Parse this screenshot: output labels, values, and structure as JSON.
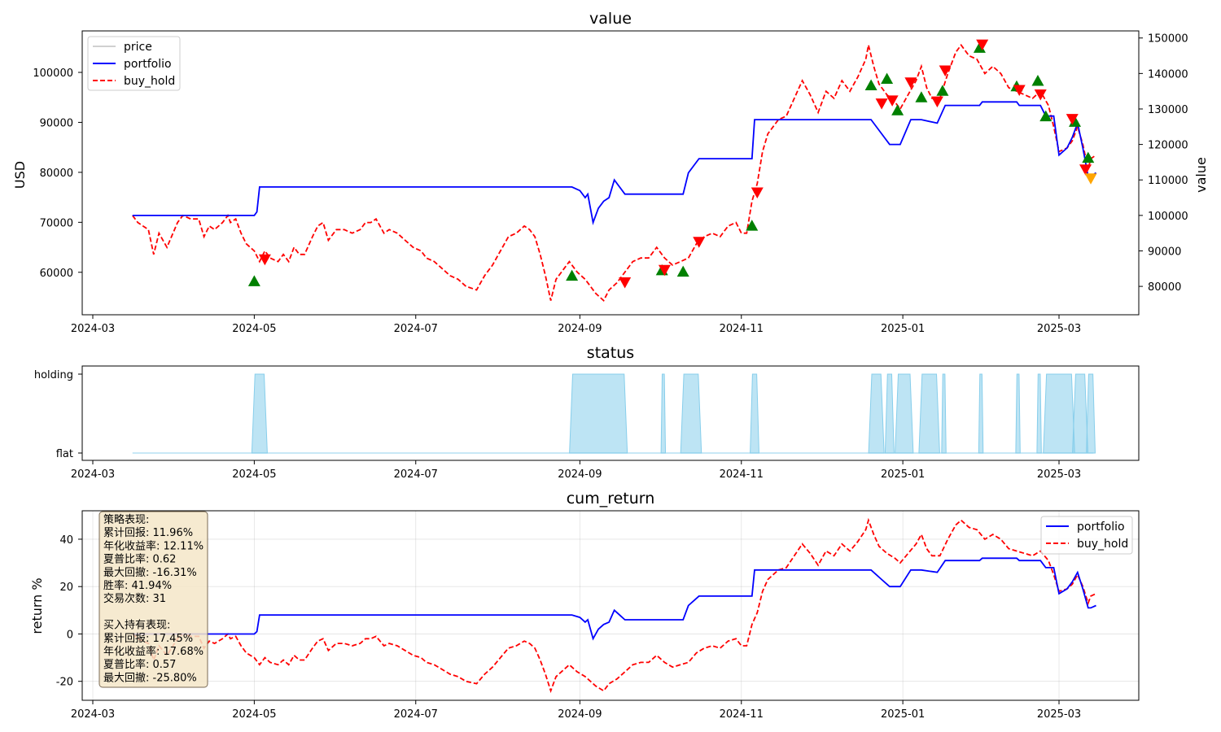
{
  "chart_data": [
    {
      "type": "line",
      "title": "value",
      "ylabel": "USD",
      "ylabel_right": "value",
      "x_ticks": [
        "2024-03",
        "2024-05",
        "2024-07",
        "2024-09",
        "2024-11",
        "2025-01",
        "2025-03"
      ],
      "y_ticks_left": [
        "60000",
        "70000",
        "80000",
        "90000",
        "100000"
      ],
      "y_ticks_right": [
        "80000",
        "90000",
        "100000",
        "110000",
        "120000",
        "130000",
        "140000",
        "150000"
      ],
      "ylim_left": [
        51500,
        108300
      ],
      "ylim_right": [
        72000,
        152000
      ],
      "legend": [
        {
          "name": "price",
          "color": "#c0c0c0",
          "style": "solid"
        },
        {
          "name": "portfolio",
          "color": "#0000ff",
          "style": "solid"
        },
        {
          "name": "buy_hold",
          "color": "#ff0000",
          "style": "dashed"
        }
      ],
      "legend_position": "top-left",
      "grid": false
    },
    {
      "type": "area",
      "title": "status",
      "y_ticks": [
        "holding",
        "flat"
      ],
      "x_ticks": [
        "2024-03",
        "2024-05",
        "2024-07",
        "2024-09",
        "2024-11",
        "2025-01",
        "2025-03"
      ],
      "color": "#87ceeb",
      "holding_periods": [
        [
          "2024-05-01",
          "2024-05-05"
        ],
        [
          "2024-08-29",
          "2024-09-18"
        ],
        [
          "2024-10-02",
          "2024-10-03"
        ],
        [
          "2024-10-10",
          "2024-10-16"
        ],
        [
          "2024-11-05",
          "2024-11-07"
        ],
        [
          "2024-12-20",
          "2024-12-24"
        ],
        [
          "2024-12-26",
          "2024-12-28"
        ],
        [
          "2024-12-30",
          "2025-01-04"
        ],
        [
          "2025-01-08",
          "2025-01-14"
        ],
        [
          "2025-01-16",
          "2025-01-17"
        ],
        [
          "2025-01-30",
          "2025-01-31"
        ],
        [
          "2025-02-13",
          "2025-02-14"
        ],
        [
          "2025-02-21",
          "2025-02-22"
        ],
        [
          "2025-02-24",
          "2025-03-06"
        ],
        [
          "2025-03-07",
          "2025-03-11"
        ],
        [
          "2025-03-12",
          "2025-03-14"
        ]
      ]
    },
    {
      "type": "line",
      "title": "cum_return",
      "ylabel": "return %",
      "x_ticks": [
        "2024-03",
        "2024-05",
        "2024-07",
        "2024-09",
        "2024-11",
        "2025-01",
        "2025-03"
      ],
      "y_ticks": [
        "-20",
        "0",
        "20",
        "40"
      ],
      "ylim": [
        -28,
        52
      ],
      "grid": true,
      "legend": [
        {
          "name": "portfolio",
          "color": "#0000ff",
          "style": "solid"
        },
        {
          "name": "buy_hold",
          "color": "#ff0000",
          "style": "dashed"
        }
      ],
      "legend_position": "top-right"
    }
  ],
  "series": {
    "buy_hold_cum_return": [
      [
        "2024-03-16",
        0
      ],
      [
        "2024-03-18",
        -2
      ],
      [
        "2024-03-22",
        -4
      ],
      [
        "2024-03-24",
        -11
      ],
      [
        "2024-03-26",
        -5
      ],
      [
        "2024-03-29",
        -9
      ],
      [
        "2024-04-02",
        -2
      ],
      [
        "2024-04-04",
        0
      ],
      [
        "2024-04-07",
        -1
      ],
      [
        "2024-04-10",
        -1
      ],
      [
        "2024-04-12",
        -6
      ],
      [
        "2024-04-14",
        -3
      ],
      [
        "2024-04-16",
        -4
      ],
      [
        "2024-04-19",
        -2
      ],
      [
        "2024-04-21",
        0
      ],
      [
        "2024-04-22",
        -2
      ],
      [
        "2024-04-24",
        -1
      ],
      [
        "2024-04-26",
        -5
      ],
      [
        "2024-04-28",
        -8
      ],
      [
        "2024-05-01",
        -10
      ],
      [
        "2024-05-03",
        -13
      ],
      [
        "2024-05-05",
        -10
      ],
      [
        "2024-05-07",
        -12
      ],
      [
        "2024-05-10",
        -13
      ],
      [
        "2024-05-12",
        -11
      ],
      [
        "2024-05-14",
        -13
      ],
      [
        "2024-05-16",
        -9
      ],
      [
        "2024-05-18",
        -11
      ],
      [
        "2024-05-20",
        -11
      ],
      [
        "2024-05-23",
        -6
      ],
      [
        "2024-05-25",
        -3
      ],
      [
        "2024-05-27",
        -2
      ],
      [
        "2024-05-29",
        -7
      ],
      [
        "2024-06-01",
        -4
      ],
      [
        "2024-06-04",
        -4
      ],
      [
        "2024-06-07",
        -5
      ],
      [
        "2024-06-10",
        -4
      ],
      [
        "2024-06-12",
        -2
      ],
      [
        "2024-06-14",
        -2
      ],
      [
        "2024-06-16",
        -1
      ],
      [
        "2024-06-19",
        -5
      ],
      [
        "2024-06-21",
        -4
      ],
      [
        "2024-06-24",
        -5
      ],
      [
        "2024-06-27",
        -7
      ],
      [
        "2024-06-30",
        -9
      ],
      [
        "2024-07-03",
        -10
      ],
      [
        "2024-07-05",
        -12
      ],
      [
        "2024-07-08",
        -13
      ],
      [
        "2024-07-11",
        -15
      ],
      [
        "2024-07-14",
        -17
      ],
      [
        "2024-07-17",
        -18
      ],
      [
        "2024-07-20",
        -20
      ],
      [
        "2024-07-24",
        -21
      ],
      [
        "2024-07-27",
        -17
      ],
      [
        "2024-07-30",
        -14
      ],
      [
        "2024-08-02",
        -10
      ],
      [
        "2024-08-05",
        -6
      ],
      [
        "2024-08-08",
        -5
      ],
      [
        "2024-08-11",
        -3
      ],
      [
        "2024-08-13",
        -4
      ],
      [
        "2024-08-15",
        -6
      ],
      [
        "2024-08-17",
        -11
      ],
      [
        "2024-08-19",
        -17
      ],
      [
        "2024-08-21",
        -24
      ],
      [
        "2024-08-23",
        -18
      ],
      [
        "2024-08-26",
        -15
      ],
      [
        "2024-08-28",
        -13
      ],
      [
        "2024-08-31",
        -16
      ],
      [
        "2024-09-03",
        -18
      ],
      [
        "2024-09-05",
        -20
      ],
      [
        "2024-09-07",
        -22
      ],
      [
        "2024-09-10",
        -24
      ],
      [
        "2024-09-12",
        -21
      ],
      [
        "2024-09-15",
        -19
      ],
      [
        "2024-09-18",
        -16
      ],
      [
        "2024-09-21",
        -13
      ],
      [
        "2024-09-24",
        -12
      ],
      [
        "2024-09-27",
        -12
      ],
      [
        "2024-09-30",
        -9
      ],
      [
        "2024-10-03",
        -12
      ],
      [
        "2024-10-06",
        -14
      ],
      [
        "2024-10-09",
        -13
      ],
      [
        "2024-10-12",
        -12
      ],
      [
        "2024-10-15",
        -8
      ],
      [
        "2024-10-18",
        -6
      ],
      [
        "2024-10-21",
        -5
      ],
      [
        "2024-10-24",
        -6
      ],
      [
        "2024-10-27",
        -3
      ],
      [
        "2024-10-30",
        -2
      ],
      [
        "2024-11-01",
        -5
      ],
      [
        "2024-11-03",
        -5
      ],
      [
        "2024-11-05",
        4
      ],
      [
        "2024-11-07",
        9
      ],
      [
        "2024-11-09",
        18
      ],
      [
        "2024-11-11",
        23
      ],
      [
        "2024-11-13",
        25
      ],
      [
        "2024-11-15",
        27
      ],
      [
        "2024-11-18",
        28
      ],
      [
        "2024-11-21",
        33
      ],
      [
        "2024-11-24",
        38
      ],
      [
        "2024-11-27",
        34
      ],
      [
        "2024-11-30",
        29
      ],
      [
        "2024-12-03",
        35
      ],
      [
        "2024-12-06",
        33
      ],
      [
        "2024-12-09",
        38
      ],
      [
        "2024-12-12",
        35
      ],
      [
        "2024-12-15",
        39
      ],
      [
        "2024-12-18",
        44
      ],
      [
        "2024-12-19",
        48
      ],
      [
        "2024-12-21",
        42
      ],
      [
        "2024-12-23",
        37
      ],
      [
        "2024-12-26",
        34
      ],
      [
        "2024-12-29",
        32
      ],
      [
        "2024-12-31",
        30
      ],
      [
        "2025-01-03",
        34
      ],
      [
        "2025-01-06",
        38
      ],
      [
        "2025-01-08",
        42
      ],
      [
        "2025-01-10",
        36
      ],
      [
        "2025-01-12",
        33
      ],
      [
        "2025-01-15",
        33
      ],
      [
        "2025-01-18",
        40
      ],
      [
        "2025-01-21",
        46
      ],
      [
        "2025-01-23",
        48
      ],
      [
        "2025-01-26",
        45
      ],
      [
        "2025-01-29",
        44
      ],
      [
        "2025-02-01",
        40
      ],
      [
        "2025-02-04",
        42
      ],
      [
        "2025-02-07",
        40
      ],
      [
        "2025-02-10",
        36
      ],
      [
        "2025-02-13",
        35
      ],
      [
        "2025-02-16",
        34
      ],
      [
        "2025-02-19",
        33
      ],
      [
        "2025-02-22",
        35
      ],
      [
        "2025-02-25",
        31
      ],
      [
        "2025-02-27",
        25
      ],
      [
        "2025-03-01",
        18
      ],
      [
        "2025-03-04",
        19
      ],
      [
        "2025-03-06",
        21
      ],
      [
        "2025-03-08",
        25
      ],
      [
        "2025-03-10",
        20
      ],
      [
        "2025-03-12",
        13
      ],
      [
        "2025-03-13",
        16
      ],
      [
        "2025-03-15",
        17
      ]
    ],
    "portfolio_cum_return": [
      [
        "2024-03-16",
        0
      ],
      [
        "2024-05-01",
        0
      ],
      [
        "2024-05-02",
        1
      ],
      [
        "2024-05-03",
        8
      ],
      [
        "2024-08-29",
        8
      ],
      [
        "2024-09-01",
        7
      ],
      [
        "2024-09-03",
        5
      ],
      [
        "2024-09-04",
        6
      ],
      [
        "2024-09-06",
        -2
      ],
      [
        "2024-09-08",
        2
      ],
      [
        "2024-09-10",
        4
      ],
      [
        "2024-09-12",
        5
      ],
      [
        "2024-09-14",
        10
      ],
      [
        "2024-09-18",
        6
      ],
      [
        "2024-10-02",
        6
      ],
      [
        "2024-10-10",
        6
      ],
      [
        "2024-10-12",
        12
      ],
      [
        "2024-10-16",
        16
      ],
      [
        "2024-11-05",
        16
      ],
      [
        "2024-11-06",
        27
      ],
      [
        "2024-12-20",
        27
      ],
      [
        "2024-12-24",
        23
      ],
      [
        "2024-12-27",
        20
      ],
      [
        "2024-12-31",
        20
      ],
      [
        "2025-01-04",
        27
      ],
      [
        "2025-01-08",
        27
      ],
      [
        "2025-01-14",
        26
      ],
      [
        "2025-01-17",
        31
      ],
      [
        "2025-01-30",
        31
      ],
      [
        "2025-01-31",
        32
      ],
      [
        "2025-02-13",
        32
      ],
      [
        "2025-02-14",
        31
      ],
      [
        "2025-02-22",
        31
      ],
      [
        "2025-02-24",
        28
      ],
      [
        "2025-02-27",
        28
      ],
      [
        "2025-03-01",
        17
      ],
      [
        "2025-03-04",
        19
      ],
      [
        "2025-03-06",
        22
      ],
      [
        "2025-03-08",
        26
      ],
      [
        "2025-03-10",
        19
      ],
      [
        "2025-03-12",
        11
      ],
      [
        "2025-03-13",
        11
      ],
      [
        "2025-03-15",
        12
      ]
    ],
    "buy_markers": [
      [
        "2024-05-01",
        58200
      ],
      [
        "2024-08-29",
        59300
      ],
      [
        "2024-10-02",
        60400
      ],
      [
        "2024-10-10",
        60100
      ],
      [
        "2024-11-05",
        69300
      ],
      [
        "2024-12-20",
        97400
      ],
      [
        "2024-12-26",
        98700
      ],
      [
        "2024-12-30",
        92400
      ],
      [
        "2025-01-08",
        95000
      ],
      [
        "2025-01-16",
        96300
      ],
      [
        "2025-01-30",
        104900
      ],
      [
        "2025-02-13",
        97200
      ],
      [
        "2025-02-21",
        98300
      ],
      [
        "2025-02-24",
        91200
      ],
      [
        "2025-03-07",
        90100
      ],
      [
        "2025-03-12",
        82900
      ]
    ],
    "sell_markers": [
      [
        "2024-05-05",
        62600
      ],
      [
        "2024-09-18",
        58000
      ],
      [
        "2024-10-03",
        60500
      ],
      [
        "2024-10-16",
        66100
      ],
      [
        "2024-11-07",
        76000
      ],
      [
        "2024-12-24",
        93800
      ],
      [
        "2024-12-28",
        94400
      ],
      [
        "2025-01-04",
        98000
      ],
      [
        "2025-01-14",
        94200
      ],
      [
        "2025-01-17",
        100400
      ],
      [
        "2025-01-31",
        105600
      ],
      [
        "2025-02-14",
        96500
      ],
      [
        "2025-02-22",
        95600
      ],
      [
        "2025-03-06",
        90700
      ],
      [
        "2025-03-11",
        80600
      ]
    ],
    "final_marker": [
      [
        "2025-03-13",
        78800
      ]
    ]
  },
  "stats_box": {
    "lines": [
      "策略表现:",
      "累计回报: 11.96%",
      "年化收益率: 12.11%",
      "夏普比率: 0.62",
      "最大回撤: -16.31%",
      "胜率: 41.94%",
      "交易次数: 31",
      "",
      "买入持有表现:",
      "累计回报: 17.45%",
      "年化收益率: 17.68%",
      "夏普比率: 0.57",
      "最大回撤: -25.80%"
    ]
  },
  "colors": {
    "portfolio": "#0000ff",
    "buy_hold": "#ff0000",
    "price": "#c0c0c0",
    "buy_marker": "#008000",
    "sell_marker": "#ff0000",
    "final_marker": "#ffa500",
    "status_fill": "#87ceeb",
    "stats_box_bg": "#f5e6c8"
  }
}
